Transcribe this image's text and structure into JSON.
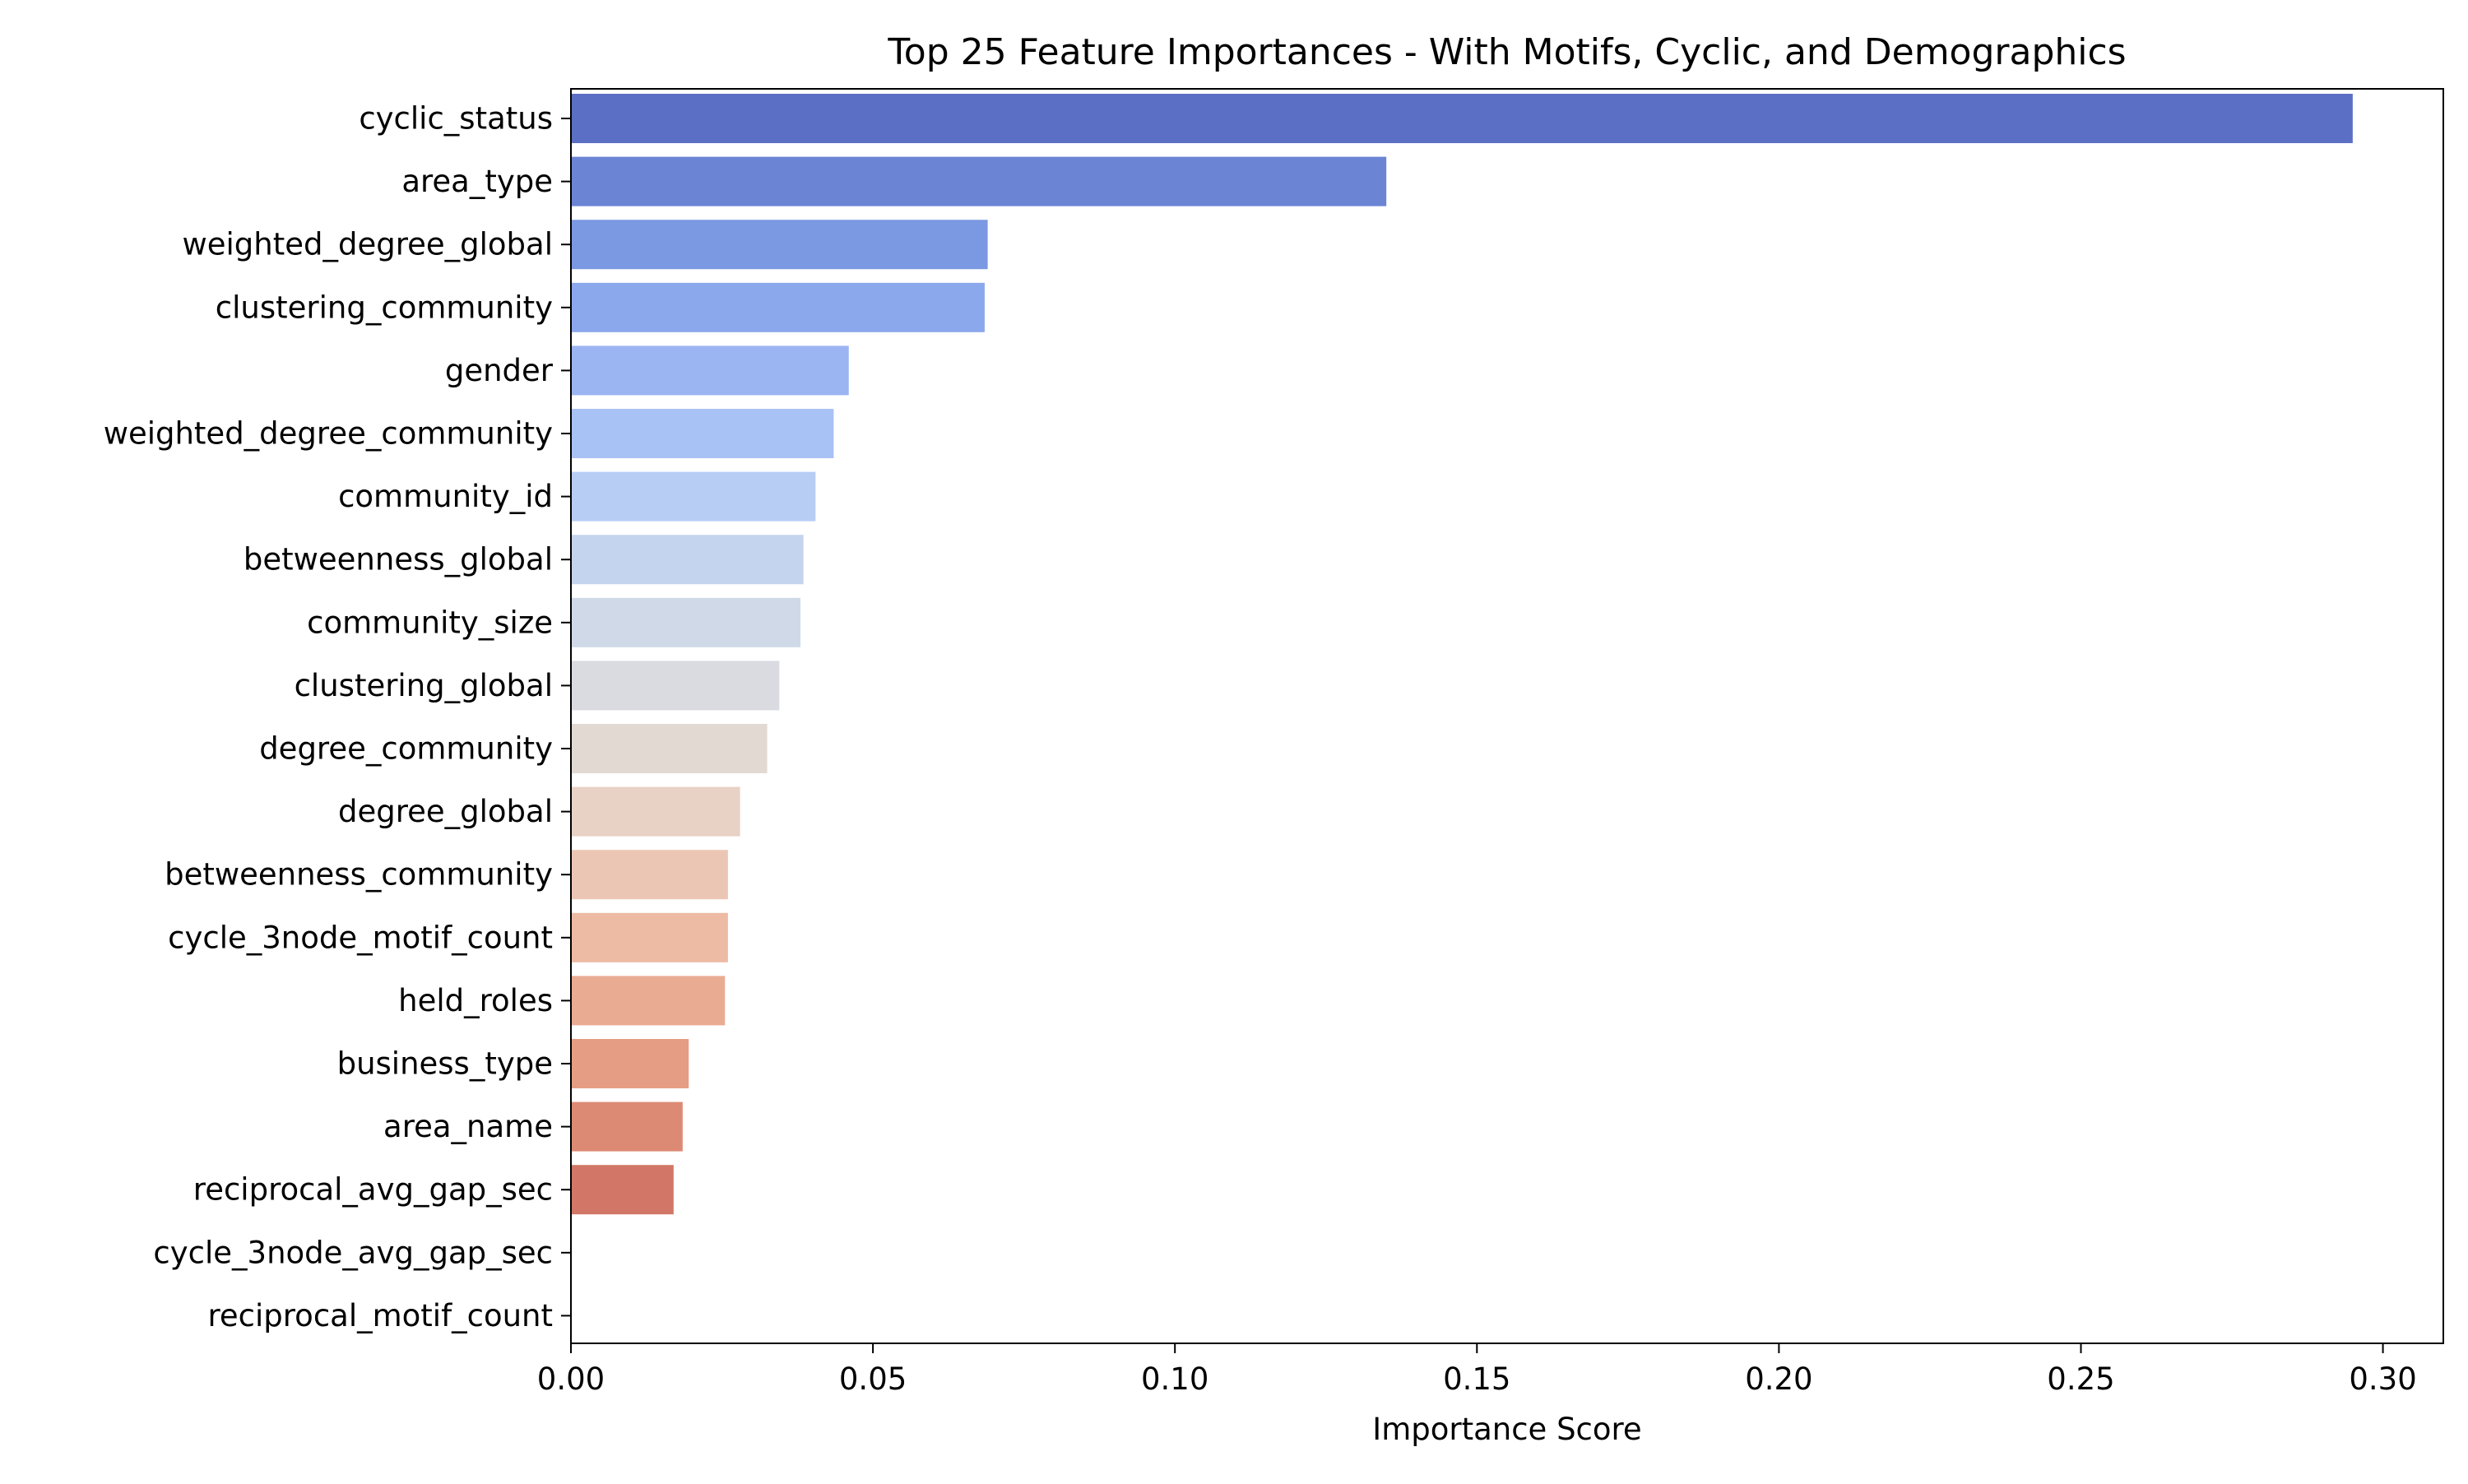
{
  "chart_data": {
    "type": "bar",
    "orientation": "horizontal",
    "title": "Top 25 Feature Importances - With Motifs, Cyclic, and Demographics",
    "xlabel": "Importance Score",
    "ylabel": "",
    "xlim": [
      0.0,
      0.31
    ],
    "xticks": [
      0.0,
      0.05,
      0.1,
      0.15,
      0.2,
      0.25,
      0.3
    ],
    "xtick_labels": [
      "0.00",
      "0.05",
      "0.10",
      "0.15",
      "0.20",
      "0.25",
      "0.30"
    ],
    "grid": false,
    "categories": [
      "cyclic_status",
      "area_type",
      "weighted_degree_global",
      "clustering_community",
      "gender",
      "weighted_degree_community",
      "community_id",
      "betweenness_global",
      "community_size",
      "clustering_global",
      "degree_community",
      "degree_global",
      "betweenness_community",
      "cycle_3node_motif_count",
      "held_roles",
      "business_type",
      "area_name",
      "reciprocal_avg_gap_sec",
      "cycle_3node_avg_gap_sec",
      "reciprocal_motif_count"
    ],
    "values": [
      0.295,
      0.135,
      0.069,
      0.0685,
      0.046,
      0.0435,
      0.0405,
      0.0385,
      0.038,
      0.0345,
      0.0325,
      0.028,
      0.026,
      0.026,
      0.0255,
      0.0195,
      0.0185,
      0.017,
      0.0,
      0.0
    ],
    "colors": [
      "#5b70c4",
      "#6b84d4",
      "#7b98e2",
      "#8ca8ec",
      "#9bb5f2",
      "#a9c2f6",
      "#b7cdf4",
      "#c4d3ee",
      "#cfd9e8",
      "#d9dbe1",
      "#e2d9d3",
      "#e8d1c5",
      "#ecc6b4",
      "#edbaa3",
      "#eaab93",
      "#e59d83",
      "#dd8a74",
      "#d27767",
      "#c85f57",
      "#bd4a4a"
    ]
  }
}
